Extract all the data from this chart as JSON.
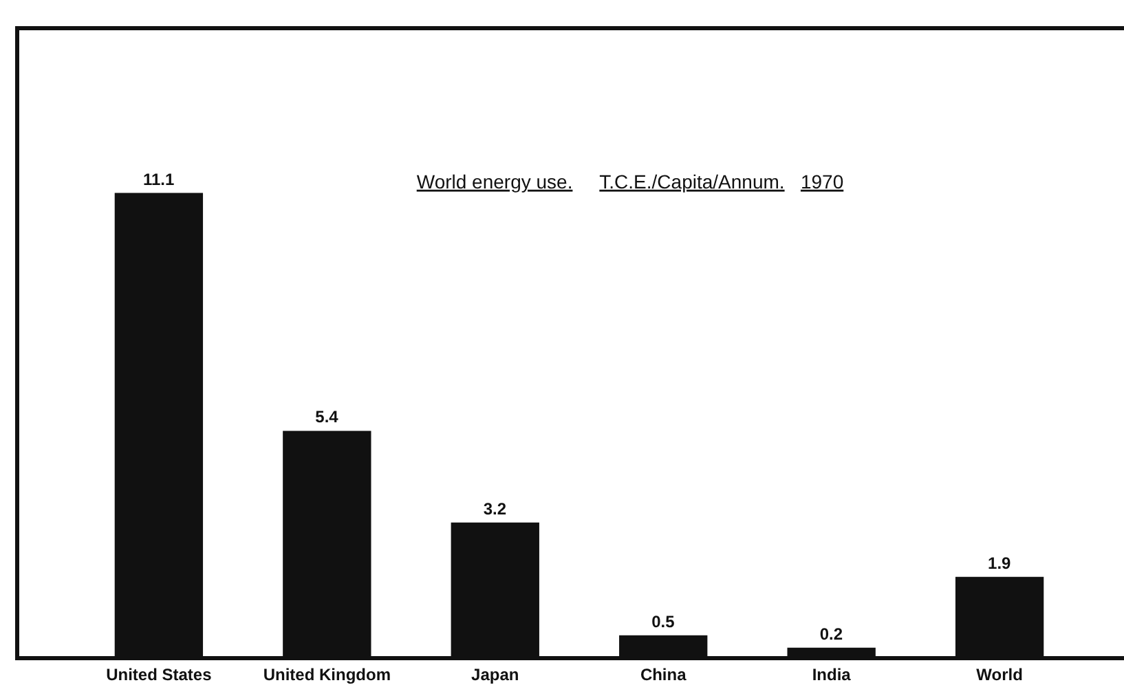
{
  "chart_data": {
    "type": "bar",
    "title": "World energy use.     T.C.E./Capita/Annum.   1970",
    "categories": [
      "United States",
      "United Kingdom",
      "Japan",
      "China",
      "India",
      "World"
    ],
    "values": [
      11.1,
      5.4,
      3.2,
      0.5,
      0.2,
      1.9
    ],
    "color": "#111111",
    "data_labels": true,
    "ylim": [
      0,
      15
    ],
    "tick_labels": "x"
  }
}
